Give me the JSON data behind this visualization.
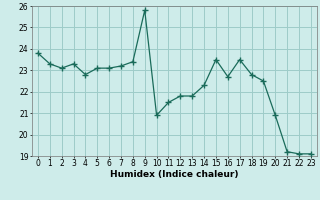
{
  "x": [
    0,
    1,
    2,
    3,
    4,
    5,
    6,
    7,
    8,
    9,
    10,
    11,
    12,
    13,
    14,
    15,
    16,
    17,
    18,
    19,
    20,
    21,
    22,
    23
  ],
  "y": [
    23.8,
    23.3,
    23.1,
    23.3,
    22.8,
    23.1,
    23.1,
    23.2,
    23.4,
    25.8,
    20.9,
    21.5,
    21.8,
    21.8,
    22.3,
    23.5,
    22.7,
    23.5,
    22.8,
    22.5,
    20.9,
    19.2,
    19.1,
    19.1
  ],
  "line_color": "#1a6b5a",
  "marker": "+",
  "bg_color": "#ceecea",
  "grid_major_color": "#9ecbc8",
  "grid_minor_color": "#dbb8b8",
  "xlabel": "Humidex (Indice chaleur)",
  "ylim": [
    19,
    26
  ],
  "xlim": [
    -0.5,
    23.5
  ],
  "yticks": [
    19,
    20,
    21,
    22,
    23,
    24,
    25,
    26
  ],
  "xticks": [
    0,
    1,
    2,
    3,
    4,
    5,
    6,
    7,
    8,
    9,
    10,
    11,
    12,
    13,
    14,
    15,
    16,
    17,
    18,
    19,
    20,
    21,
    22,
    23
  ],
  "xlabel_fontsize": 6.5,
  "tick_fontsize": 5.5
}
